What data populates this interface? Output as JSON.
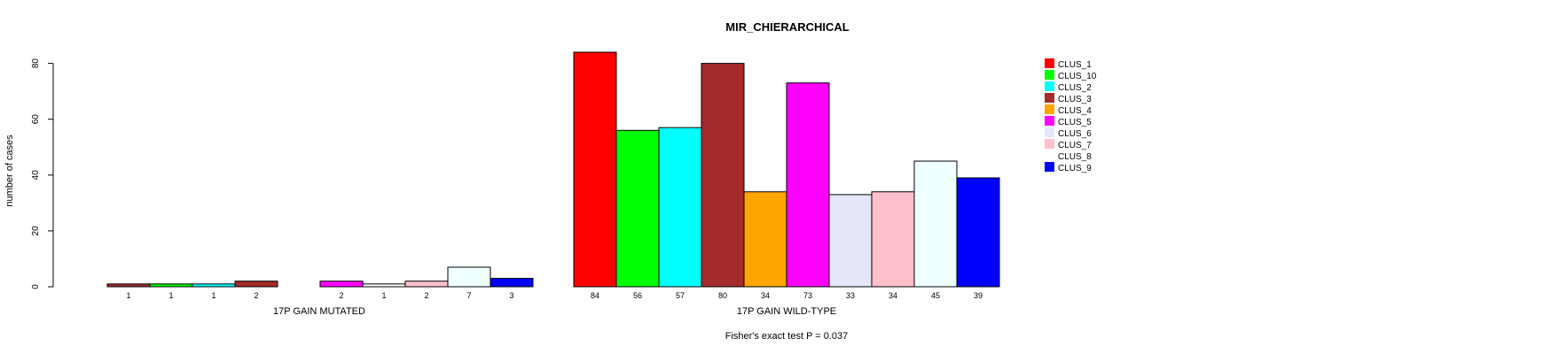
{
  "chart_data": {
    "type": "bar",
    "title": "MIR_CHIERARCHICAL",
    "ylabel": "number of cases",
    "ylim": [
      0,
      84
    ],
    "yticks": [
      0,
      20,
      40,
      60,
      80
    ],
    "footer": "Fisher's exact test P = 0.037",
    "legend_position": "right",
    "series": [
      {
        "name": "CLUS_1",
        "color": "#FF0000"
      },
      {
        "name": "CLUS_10",
        "color": "#00FF00"
      },
      {
        "name": "CLUS_2",
        "color": "#00FFFF"
      },
      {
        "name": "CLUS_3",
        "color": "#A52A2A"
      },
      {
        "name": "CLUS_4",
        "color": "#FFA500"
      },
      {
        "name": "CLUS_5",
        "color": "#FF00FF"
      },
      {
        "name": "CLUS_6",
        "color": "#E6E6FA"
      },
      {
        "name": "CLUS_7",
        "color": "#FFC0CB"
      },
      {
        "name": "CLUS_8",
        "color": "#FFFFFF"
      },
      {
        "name": "CLUS_9",
        "color": "#0000FF"
      }
    ],
    "groups": [
      {
        "label": "17P GAIN MUTATED",
        "values": [
          1,
          1,
          1,
          2,
          0,
          2,
          1,
          2,
          7,
          3
        ],
        "value_labels": [
          "1",
          "1",
          "1",
          "2",
          "",
          "2",
          "1",
          "2",
          "7",
          "3"
        ],
        "colors": [
          "#A52A2A",
          "#00FF00",
          "#00FFFF",
          "#A52A2A",
          "#FFA500",
          "#FF00FF",
          "#FFFFFF",
          "#FFC0CB",
          "#F0FFFF",
          "#0000FF"
        ]
      },
      {
        "label": "17P GAIN WILD-TYPE",
        "values": [
          84,
          56,
          57,
          80,
          34,
          73,
          33,
          34,
          45,
          39
        ],
        "value_labels": [
          "84",
          "56",
          "57",
          "80",
          "34",
          "73",
          "33",
          "34",
          "45",
          "39"
        ],
        "colors": [
          "#FF0000",
          "#00FF00",
          "#00FFFF",
          "#A52A2A",
          "#FFA500",
          "#FF00FF",
          "#E6E6FA",
          "#FFC0CB",
          "#F0FFFF",
          "#0000FF"
        ]
      }
    ]
  }
}
